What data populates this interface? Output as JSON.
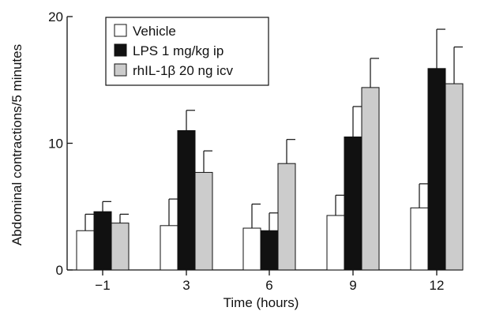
{
  "chart_data": {
    "type": "bar",
    "xlabel": "Time (hours)",
    "ylabel": "Abdominal contractions/5 minutes",
    "ylim": [
      0,
      20
    ],
    "yticks": [
      0,
      10,
      20
    ],
    "categories": [
      "−1",
      "3",
      "6",
      "9",
      "12"
    ],
    "error_bars": "upper (mean + error)",
    "legend_position": "top-left",
    "grid": false,
    "series": [
      {
        "name": "Vehicle",
        "color": "#ffffff",
        "values": [
          3.1,
          3.5,
          3.3,
          4.3,
          4.9
        ],
        "errors": [
          1.3,
          2.1,
          1.9,
          1.6,
          1.9
        ]
      },
      {
        "name": "LPS 1 mg/kg ip",
        "color": "#111111",
        "values": [
          4.6,
          11.0,
          3.1,
          10.5,
          15.9
        ],
        "errors": [
          0.8,
          1.6,
          1.4,
          2.4,
          3.1
        ]
      },
      {
        "name": "rhIL-1β 20 ng icv",
        "color": "#cccccc",
        "values": [
          3.7,
          7.7,
          8.4,
          14.4,
          14.7
        ],
        "errors": [
          0.7,
          1.7,
          1.9,
          2.3,
          2.9
        ]
      }
    ]
  }
}
